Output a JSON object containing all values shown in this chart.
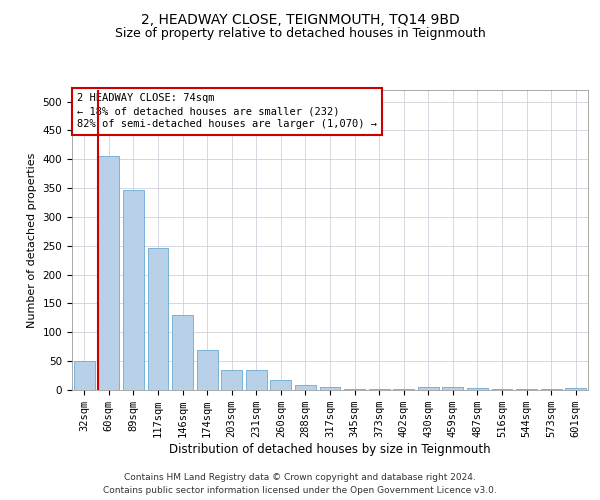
{
  "title": "2, HEADWAY CLOSE, TEIGNMOUTH, TQ14 9BD",
  "subtitle": "Size of property relative to detached houses in Teignmouth",
  "xlabel": "Distribution of detached houses by size in Teignmouth",
  "ylabel": "Number of detached properties",
  "categories": [
    "32sqm",
    "60sqm",
    "89sqm",
    "117sqm",
    "146sqm",
    "174sqm",
    "203sqm",
    "231sqm",
    "260sqm",
    "288sqm",
    "317sqm",
    "345sqm",
    "373sqm",
    "402sqm",
    "430sqm",
    "459sqm",
    "487sqm",
    "516sqm",
    "544sqm",
    "573sqm",
    "601sqm"
  ],
  "values": [
    50,
    405,
    347,
    246,
    130,
    70,
    35,
    35,
    18,
    8,
    5,
    2,
    2,
    2,
    5,
    5,
    3,
    2,
    2,
    2,
    3
  ],
  "bar_color": "#b8d0e8",
  "bar_edge_color": "#6aaad4",
  "vline_x_data": 0.575,
  "vline_color": "#cc0000",
  "annotation_box_text": "2 HEADWAY CLOSE: 74sqm\n← 18% of detached houses are smaller (232)\n82% of semi-detached houses are larger (1,070) →",
  "annotation_box_color": "#cc0000",
  "ylim": [
    0,
    520
  ],
  "yticks": [
    0,
    50,
    100,
    150,
    200,
    250,
    300,
    350,
    400,
    450,
    500
  ],
  "grid_color": "#c8c8d8",
  "background_color": "#ffffff",
  "footer_line1": "Contains HM Land Registry data © Crown copyright and database right 2024.",
  "footer_line2": "Contains public sector information licensed under the Open Government Licence v3.0.",
  "title_fontsize": 10,
  "subtitle_fontsize": 9,
  "xlabel_fontsize": 8.5,
  "ylabel_fontsize": 8,
  "tick_fontsize": 7.5,
  "annotation_fontsize": 7.5,
  "footer_fontsize": 6.5
}
